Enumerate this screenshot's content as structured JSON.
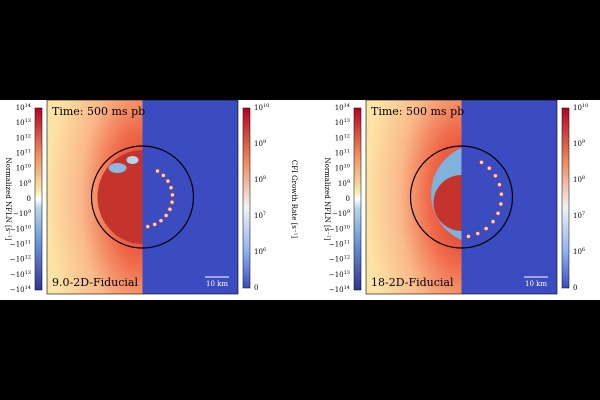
{
  "panels": [
    {
      "time_label": "Time: 500 ms pb",
      "model_label": "9.0-2D-Fiducial",
      "scale_label": "10 km"
    },
    {
      "time_label": "Time: 500 ms pb",
      "model_label": "18-2D-Fiducial",
      "scale_label": "10 km"
    }
  ],
  "left_colorbar": {
    "label": "Normalized NFLN [s⁻¹]",
    "ticks": [
      {
        "mantissa": "10",
        "exponent": "14"
      },
      {
        "mantissa": "10",
        "exponent": "13"
      },
      {
        "mantissa": "10",
        "exponent": "12"
      },
      {
        "mantissa": "10",
        "exponent": "11"
      },
      {
        "mantissa": "10",
        "exponent": "10"
      },
      {
        "mantissa": "10",
        "exponent": "9"
      },
      {
        "mantissa": "0"
      },
      {
        "mantissa": "−10",
        "exponent": "9"
      },
      {
        "mantissa": "−10",
        "exponent": "10"
      },
      {
        "mantissa": "−10",
        "exponent": "11"
      },
      {
        "mantissa": "−10",
        "exponent": "12"
      },
      {
        "mantissa": "−10",
        "exponent": "13"
      },
      {
        "mantissa": "−10",
        "exponent": "14"
      }
    ]
  },
  "right_colorbar": {
    "label": "CFI Growth Rate [s⁻¹]",
    "ticks": [
      {
        "mantissa": "10",
        "exponent": "10"
      },
      {
        "mantissa": "10",
        "exponent": "9"
      },
      {
        "mantissa": "10",
        "exponent": "8"
      },
      {
        "mantissa": "10",
        "exponent": "7"
      },
      {
        "mantissa": "10",
        "exponent": "6"
      },
      {
        "mantissa": "0"
      }
    ]
  }
}
